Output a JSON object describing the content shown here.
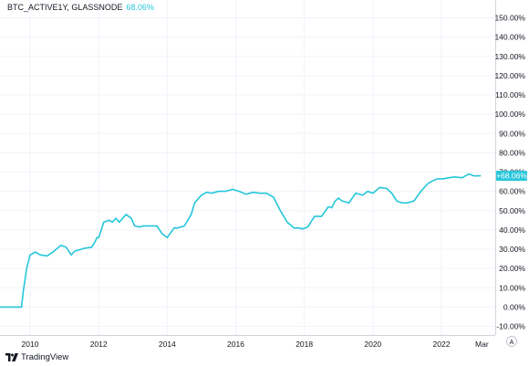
{
  "legend": {
    "symbol": "BTC_ACTIVE1Y, GLASSNODE",
    "value": "68.06%"
  },
  "footer": {
    "brand": "TradingView"
  },
  "axis_button": "A",
  "colors": {
    "line": "#26c6da",
    "grid": "#f0f3fa",
    "text": "#131722"
  },
  "chart_data": {
    "type": "line",
    "title": "",
    "xlabel": "",
    "ylabel": "",
    "ylim": [
      -10,
      150
    ],
    "grid": true,
    "y_ticks": [
      "150.00%",
      "140.00%",
      "130.00%",
      "120.00%",
      "110.00%",
      "100.00%",
      "90.00%",
      "80.00%",
      "70.00%",
      "60.00%",
      "50.00%",
      "40.00%",
      "30.00%",
      "20.00%",
      "10.00%",
      "0.00%",
      "-10.00%"
    ],
    "x_ticks": [
      "2010",
      "2012",
      "2014",
      "2016",
      "2018",
      "2020",
      "2022",
      "Mar"
    ],
    "last_value_label": "+68.06%",
    "series": [
      {
        "x": [
          2009.0,
          2009.75,
          2009.8,
          2009.9,
          2010.0,
          2010.15,
          2010.3,
          2010.5,
          2010.7,
          2010.9,
          2011.05,
          2011.2,
          2011.3,
          2011.5,
          2011.6,
          2011.8,
          2011.9,
          2011.95,
          2012.0,
          2012.15,
          2012.3,
          2012.4,
          2012.5,
          2012.6,
          2012.8,
          2012.95,
          2013.05,
          2013.2,
          2013.3,
          2013.5,
          2013.7,
          2013.85,
          2014.0,
          2014.1,
          2014.2,
          2014.3,
          2014.5,
          2014.7,
          2014.8,
          2015.0,
          2015.15,
          2015.3,
          2015.5,
          2015.7,
          2015.9,
          2016.1,
          2016.3,
          2016.5,
          2016.7,
          2016.9,
          2017.1,
          2017.3,
          2017.5,
          2017.7,
          2017.85,
          2017.95,
          2018.1,
          2018.3,
          2018.5,
          2018.7,
          2018.8,
          2018.9,
          2019.0,
          2019.1,
          2019.3,
          2019.5,
          2019.7,
          2019.85,
          2020.0,
          2020.2,
          2020.4,
          2020.55,
          2020.7,
          2020.85,
          2021.0,
          2021.2,
          2021.4,
          2021.6,
          2021.8,
          2021.9,
          2022.05,
          2022.2,
          2022.4,
          2022.6,
          2022.8,
          2022.95,
          2023.05,
          2023.15
        ],
        "y": [
          0.0,
          0.0,
          8.0,
          20.0,
          27.0,
          28.5,
          27.0,
          26.5,
          29.0,
          32.0,
          31.0,
          27.0,
          29.0,
          30.0,
          30.5,
          31.0,
          34.0,
          36.0,
          36.0,
          44.0,
          45.0,
          44.0,
          46.0,
          44.0,
          48.0,
          46.0,
          42.0,
          41.5,
          42.0,
          42.0,
          42.0,
          38.0,
          36.0,
          38.5,
          41.0,
          41.0,
          42.0,
          48.0,
          54.0,
          58.0,
          59.5,
          59.0,
          60.0,
          60.0,
          61.0,
          60.0,
          58.5,
          59.5,
          59.0,
          59.0,
          57.0,
          50.0,
          44.0,
          41.0,
          41.0,
          40.5,
          41.5,
          47.0,
          47.0,
          52.0,
          51.5,
          55.0,
          56.5,
          55.0,
          54.0,
          59.0,
          58.0,
          60.0,
          59.0,
          62.0,
          61.5,
          59.0,
          55.0,
          54.0,
          54.0,
          55.0,
          60.0,
          64.0,
          66.0,
          66.5,
          66.5,
          67.0,
          67.5,
          67.0,
          69.0,
          68.0,
          68.0,
          68.06
        ]
      }
    ]
  }
}
